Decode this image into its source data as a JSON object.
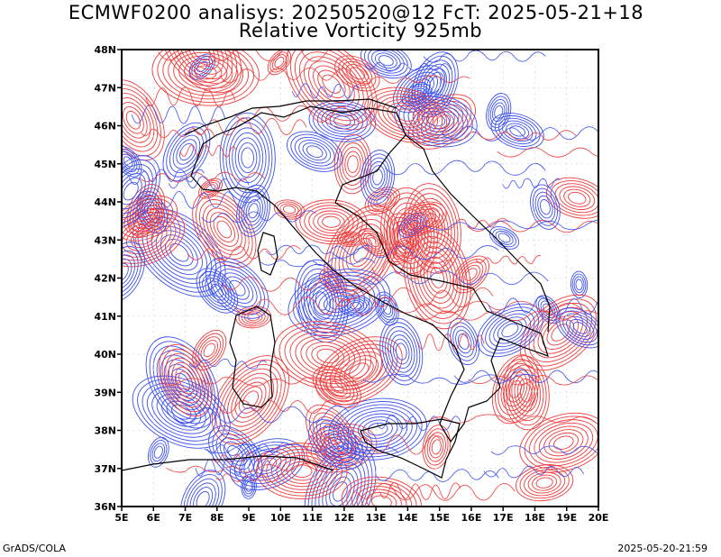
{
  "header": {
    "title_line1": "ECMWF0200 analisys: 20250520@12 FcT: 2025-05-21+18",
    "title_line2": "Relative Vorticity 925mb"
  },
  "footer": {
    "left": "GrADS/COLA",
    "right": "2025-05-20-21:59"
  },
  "map": {
    "lon_range": [
      5,
      20
    ],
    "lat_range": [
      36,
      48
    ],
    "x_ticks": [
      "5E",
      "6E",
      "7E",
      "8E",
      "9E",
      "10E",
      "11E",
      "12E",
      "13E",
      "14E",
      "15E",
      "16E",
      "17E",
      "18E",
      "19E",
      "20E"
    ],
    "y_ticks": [
      "36N",
      "37N",
      "38N",
      "39N",
      "40N",
      "41N",
      "42N",
      "43N",
      "44N",
      "45N",
      "46N",
      "47N",
      "48N"
    ],
    "colors": {
      "positive_vorticity": "#f03c3c",
      "negative_vorticity": "#3c50f0",
      "coastline": "#000000",
      "grid": "#c8c8c8"
    },
    "grid": true
  }
}
